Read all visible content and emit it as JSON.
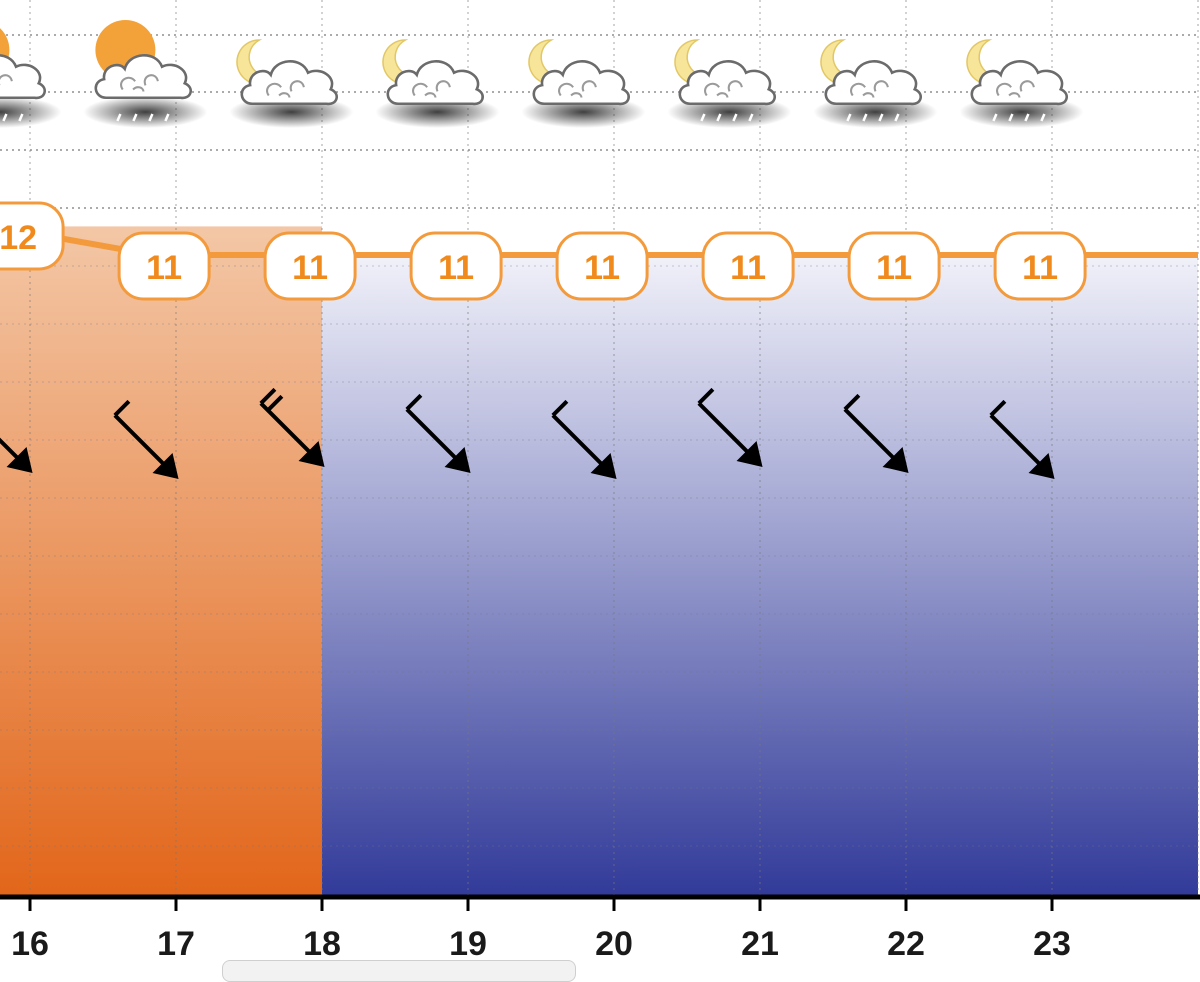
{
  "chart_data": {
    "type": "line",
    "x": [
      16,
      17,
      18,
      19,
      20,
      21,
      22,
      23
    ],
    "hour_ticks": [
      "16",
      "17",
      "18",
      "19",
      "20",
      "21",
      "22",
      "23"
    ],
    "temperature": {
      "points": [
        {
          "x": 15.35,
          "value": 12.1
        },
        {
          "x": 15.85,
          "value": 12
        },
        {
          "x": 16.85,
          "value": 11
        },
        {
          "x": 17.85,
          "value": 11
        },
        {
          "x": 18.85,
          "value": 11
        },
        {
          "x": 19.85,
          "value": 11
        },
        {
          "x": 20.85,
          "value": 11
        },
        {
          "x": 21.85,
          "value": 11
        },
        {
          "x": 22.85,
          "value": 11
        },
        {
          "x": 24.0,
          "value": 11
        }
      ],
      "labels": [
        {
          "x": 15.85,
          "value": 12,
          "text": "12"
        },
        {
          "x": 16.85,
          "value": 11,
          "text": "11"
        },
        {
          "x": 17.85,
          "value": 11,
          "text": "11"
        },
        {
          "x": 18.85,
          "value": 11,
          "text": "11"
        },
        {
          "x": 19.85,
          "value": 11,
          "text": "11"
        },
        {
          "x": 20.85,
          "value": 11,
          "text": "11"
        },
        {
          "x": 21.85,
          "value": 11,
          "text": "11"
        },
        {
          "x": 22.85,
          "value": 11,
          "text": "11"
        }
      ],
      "color": "#f39b3c"
    },
    "weather_icons": [
      {
        "x": 15.4,
        "icon": "sun-cloud-rain-icon"
      },
      {
        "x": 16.4,
        "icon": "sun-cloud-heavy-rain-icon"
      },
      {
        "x": 17.4,
        "icon": "moon-cloud-icon"
      },
      {
        "x": 18.4,
        "icon": "moon-cloud-icon"
      },
      {
        "x": 19.4,
        "icon": "moon-cloud-icon"
      },
      {
        "x": 20.4,
        "icon": "moon-cloud-rain-icon"
      },
      {
        "x": 21.4,
        "icon": "moon-cloud-rain-icon"
      },
      {
        "x": 22.4,
        "icon": "moon-cloud-rain-icon"
      }
    ],
    "wind": [
      {
        "x": 15.65,
        "direction_deg": 315,
        "barbs": 2
      },
      {
        "x": 16.65,
        "direction_deg": 315,
        "barbs": 1
      },
      {
        "x": 17.65,
        "direction_deg": 315,
        "barbs": 2
      },
      {
        "x": 18.65,
        "direction_deg": 315,
        "barbs": 1
      },
      {
        "x": 19.65,
        "direction_deg": 315,
        "barbs": 1
      },
      {
        "x": 20.65,
        "direction_deg": 315,
        "barbs": 1
      },
      {
        "x": 21.65,
        "direction_deg": 315,
        "barbs": 1
      },
      {
        "x": 22.65,
        "direction_deg": 315,
        "barbs": 1
      }
    ],
    "background_periods": [
      {
        "from": 15.0,
        "to": 18.0,
        "name": "day",
        "top_color": "#f3c7a6",
        "bottom_color": "#e2661a"
      },
      {
        "from": 18.0,
        "to": 24.0,
        "name": "night",
        "top_color": "#f2f2fa",
        "bottom_color": "#313a99"
      }
    ],
    "xlim": [
      15.8,
      24.0
    ],
    "ylim": [
      0,
      14
    ],
    "grid": true,
    "legend": "none"
  }
}
